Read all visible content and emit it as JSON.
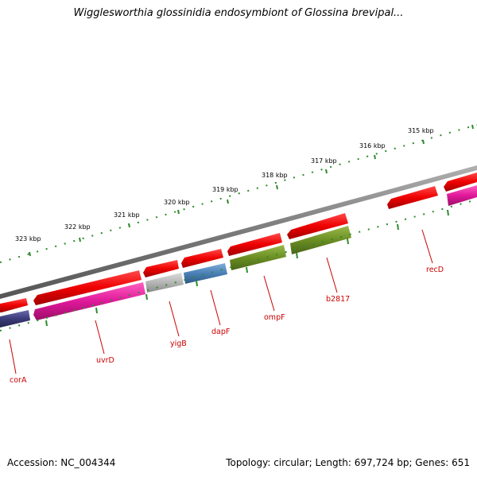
{
  "title": "Wigglesworthia glossinidia endosymbiont of Glossina brevipal...",
  "footer": {
    "accession_label": "Accession:",
    "accession": "NC_004344",
    "topology_label": "Topology:",
    "topology": "circular",
    "length_label": "Length:",
    "length": "697,724 bp",
    "genes_label": "Genes:",
    "genes": "651"
  },
  "colors": {
    "backbone": "#808080",
    "tick": "#2e8b2e",
    "label": "#cc0000",
    "forward_gene": "#ee0000"
  },
  "scale": {
    "unit": "kbp",
    "labels": [
      "315 kbp",
      "316 kbp",
      "317 kbp",
      "318 kbp",
      "319 kbp",
      "320 kbp",
      "321 kbp",
      "322 kbp",
      "323 kbp"
    ],
    "values": [
      315,
      316,
      317,
      318,
      319,
      320,
      321,
      322,
      323
    ]
  },
  "genes": [
    {
      "name": "recD",
      "strand": "+",
      "color": "#ee0000"
    },
    {
      "name": "b2817",
      "strand": "-",
      "color": "#6b8e23"
    },
    {
      "name": "ompF",
      "strand": "-",
      "color": "#6b8e23"
    },
    {
      "name": "dapF",
      "strand": "-",
      "color": "#4a7fb5"
    },
    {
      "name": "yigB",
      "strand": "-",
      "color": "#b5b5b5"
    },
    {
      "name": "uvrD",
      "strand": "-",
      "color": "#e0189a"
    },
    {
      "name": "corA",
      "strand": "-",
      "color": "#3b3b7a"
    }
  ]
}
